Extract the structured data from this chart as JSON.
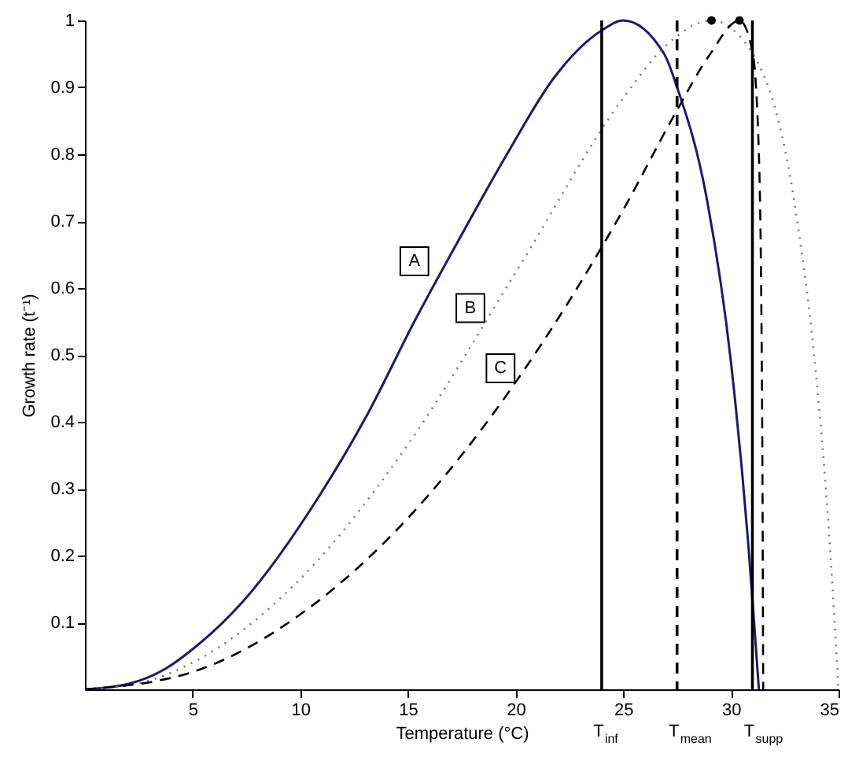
{
  "chart_data": {
    "type": "line",
    "xlabel": "Temperature (°C)",
    "ylabel": "Growth rate (t⁻¹)",
    "xlim": [
      0,
      35
    ],
    "ylim": [
      0,
      1
    ],
    "xticks": [
      5,
      10,
      15,
      20,
      25,
      30,
      35
    ],
    "yticks": [
      0.1,
      0.2,
      0.3,
      0.4,
      0.5,
      0.6,
      0.7,
      0.8,
      0.9,
      1
    ],
    "grid": false,
    "marker": "none",
    "series": [
      {
        "color": "#1a1a6e",
        "line_style": "solid",
        "x": [
          0,
          2,
          3.7,
          5,
          7.3,
          10.9,
          13.1,
          15.3,
          17.5,
          19.6,
          21.8,
          24,
          25,
          26.9,
          27.5,
          28.9,
          30,
          30.8,
          31.1,
          31.3
        ],
        "values": [
          0,
          0.008,
          0.03,
          0.06,
          0.13,
          0.29,
          0.41,
          0.55,
          0.68,
          0.8,
          0.915,
          0.985,
          1,
          0.95,
          0.9,
          0.73,
          0.49,
          0.22,
          0.09,
          0
        ]
      },
      {
        "color": "#777777",
        "line_style": "dotted",
        "x": [
          0,
          2.5,
          5,
          10,
          15,
          20,
          25,
          27,
          29.1,
          31,
          33,
          34,
          34.5,
          35
        ],
        "values": [
          0,
          0.009,
          0.04,
          0.165,
          0.366,
          0.623,
          0.884,
          0.963,
          1,
          0.951,
          0.717,
          0.455,
          0.26,
          0
        ]
      },
      {
        "color": "#000000",
        "line_style": "dashed",
        "x": [
          0,
          5,
          10,
          15,
          20,
          25,
          27.5,
          29,
          30.4,
          31,
          31.3,
          31.45,
          31.5
        ],
        "values": [
          0,
          0.026,
          0.112,
          0.256,
          0.459,
          0.717,
          0.866,
          0.948,
          1,
          0.954,
          0.8,
          0.42,
          0
        ]
      },
      {
        "type": "scatter",
        "marker": "circle",
        "color": "#000000",
        "x": [
          29.1,
          30.4
        ],
        "values": [
          1,
          1
        ]
      }
    ],
    "ref_lines": [
      {
        "axis": "x",
        "value": 24,
        "label": "T$_{inf}$",
        "color": "#000000",
        "line_style": "solid"
      },
      {
        "axis": "x",
        "value": 27.5,
        "label": "T$_{mean}$",
        "color": "#000000",
        "line_style": "dashed"
      },
      {
        "axis": "x",
        "value": 31,
        "label": "T$_{supp}$",
        "color": "#000000",
        "line_style": "solid"
      }
    ],
    "annotations": [
      {
        "text": "A",
        "x": 15.3,
        "y": 0.64
      },
      {
        "text": "B",
        "x": 17.9,
        "y": 0.57
      },
      {
        "text": "C",
        "x": 19.3,
        "y": 0.48
      }
    ]
  }
}
